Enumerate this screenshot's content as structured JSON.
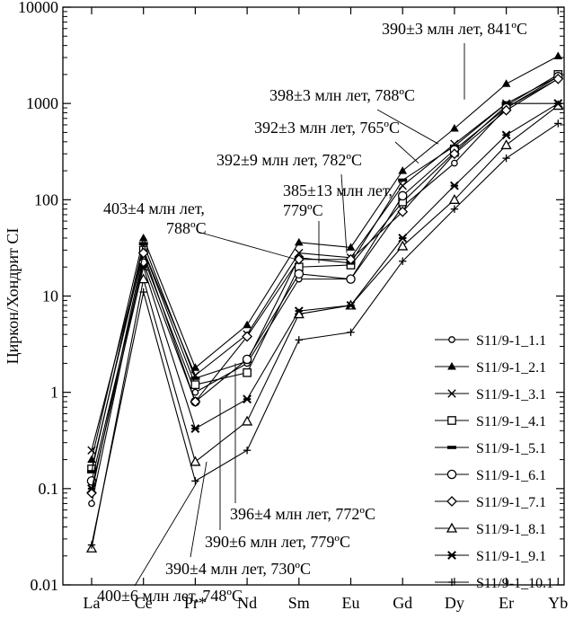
{
  "chart_data": {
    "type": "line",
    "ylabel": "Циркон/Хондрит CI",
    "yscale": "log",
    "ylim": [
      0.01,
      10000
    ],
    "y_ticks": [
      "0.01",
      "0.1",
      "1",
      "10",
      "100",
      "1000",
      "10000"
    ],
    "categories": [
      "La",
      "Ce",
      "Pr*",
      "Nd",
      "Sm",
      "Eu",
      "Gd",
      "Dy",
      "Er",
      "Yb"
    ],
    "legend_position": "bottom-right",
    "series": [
      {
        "name": "S11/9-1_1.1",
        "marker": "circle-small",
        "values": [
          0.07,
          25,
          1.0,
          2.0,
          15,
          15,
          85,
          240,
          900,
          1800
        ]
      },
      {
        "name": "S11/9-1_2.1",
        "marker": "triangle-filled",
        "values": [
          0.2,
          40,
          1.8,
          5.0,
          36,
          32,
          200,
          550,
          1600,
          3100
        ]
      },
      {
        "name": "S11/9-1_3.1",
        "marker": "x",
        "values": [
          0.25,
          30,
          1.5,
          4.0,
          28,
          25,
          140,
          380,
          1000,
          1000
        ]
      },
      {
        "name": "S11/9-1_4.1",
        "marker": "square",
        "values": [
          0.16,
          30,
          1.2,
          1.6,
          20,
          21,
          95,
          310,
          950,
          2000
        ]
      },
      {
        "name": "S11/9-1_5.1",
        "marker": "dash",
        "values": [
          0.15,
          35,
          1.4,
          2.1,
          25,
          22,
          160,
          360,
          1000,
          1900
        ]
      },
      {
        "name": "S11/9-1_6.1",
        "marker": "circle",
        "values": [
          0.12,
          22,
          0.8,
          2.2,
          17,
          15,
          110,
          330,
          900,
          1900
        ]
      },
      {
        "name": "S11/9-1_7.1",
        "marker": "diamond",
        "values": [
          0.09,
          28,
          0.8,
          3.8,
          24,
          24,
          75,
          300,
          850,
          1800
        ]
      },
      {
        "name": "S11/9-1_8.1",
        "marker": "triangle-open",
        "values": [
          0.024,
          15,
          0.19,
          0.5,
          6.5,
          8.0,
          33,
          100,
          370,
          950
        ]
      },
      {
        "name": "S11/9-1_9.1",
        "marker": "asterisk",
        "values": [
          0.1,
          20,
          0.42,
          0.85,
          7.0,
          8.0,
          40,
          140,
          470,
          1000
        ]
      },
      {
        "name": "S11/9-1_10.1",
        "marker": "plus",
        "values": [
          0.026,
          11,
          0.12,
          0.25,
          3.5,
          4.2,
          23,
          80,
          270,
          620
        ]
      }
    ],
    "annotations": [
      {
        "lines": [
          "390±3 млн лет, 841ºC"
        ],
        "points_to": "S11/9-1_2.1"
      },
      {
        "lines": [
          "398±3 млн лет, 788ºC"
        ],
        "points_to": "S11/9-1_3.1"
      },
      {
        "lines": [
          "392±3 млн лет, 765ºC"
        ],
        "points_to": "S11/9-1_5.1"
      },
      {
        "lines": [
          "392±9 млн лет, 782ºC"
        ],
        "points_to": "S11/9-1_6.1"
      },
      {
        "lines": [
          "385±13 млн лет,",
          "779ºC"
        ],
        "points_to": "S11/9-1_4.1"
      },
      {
        "lines": [
          "403±4 млн лет,",
          "788ºC"
        ],
        "points_to": "S11/9-1_7.1"
      },
      {
        "lines": [
          "396±4 млн лет, 772ºC"
        ],
        "points_to": "S11/9-1_1.1"
      },
      {
        "lines": [
          "390±6 млн лет, 779ºC"
        ],
        "points_to": "S11/9-1_9.1"
      },
      {
        "lines": [
          "390±4 млн лет, 730ºC"
        ],
        "points_to": "S11/9-1_8.1"
      },
      {
        "lines": [
          "400±6 млн лет, 748ºC"
        ],
        "points_to": "S11/9-1_10.1"
      }
    ]
  }
}
